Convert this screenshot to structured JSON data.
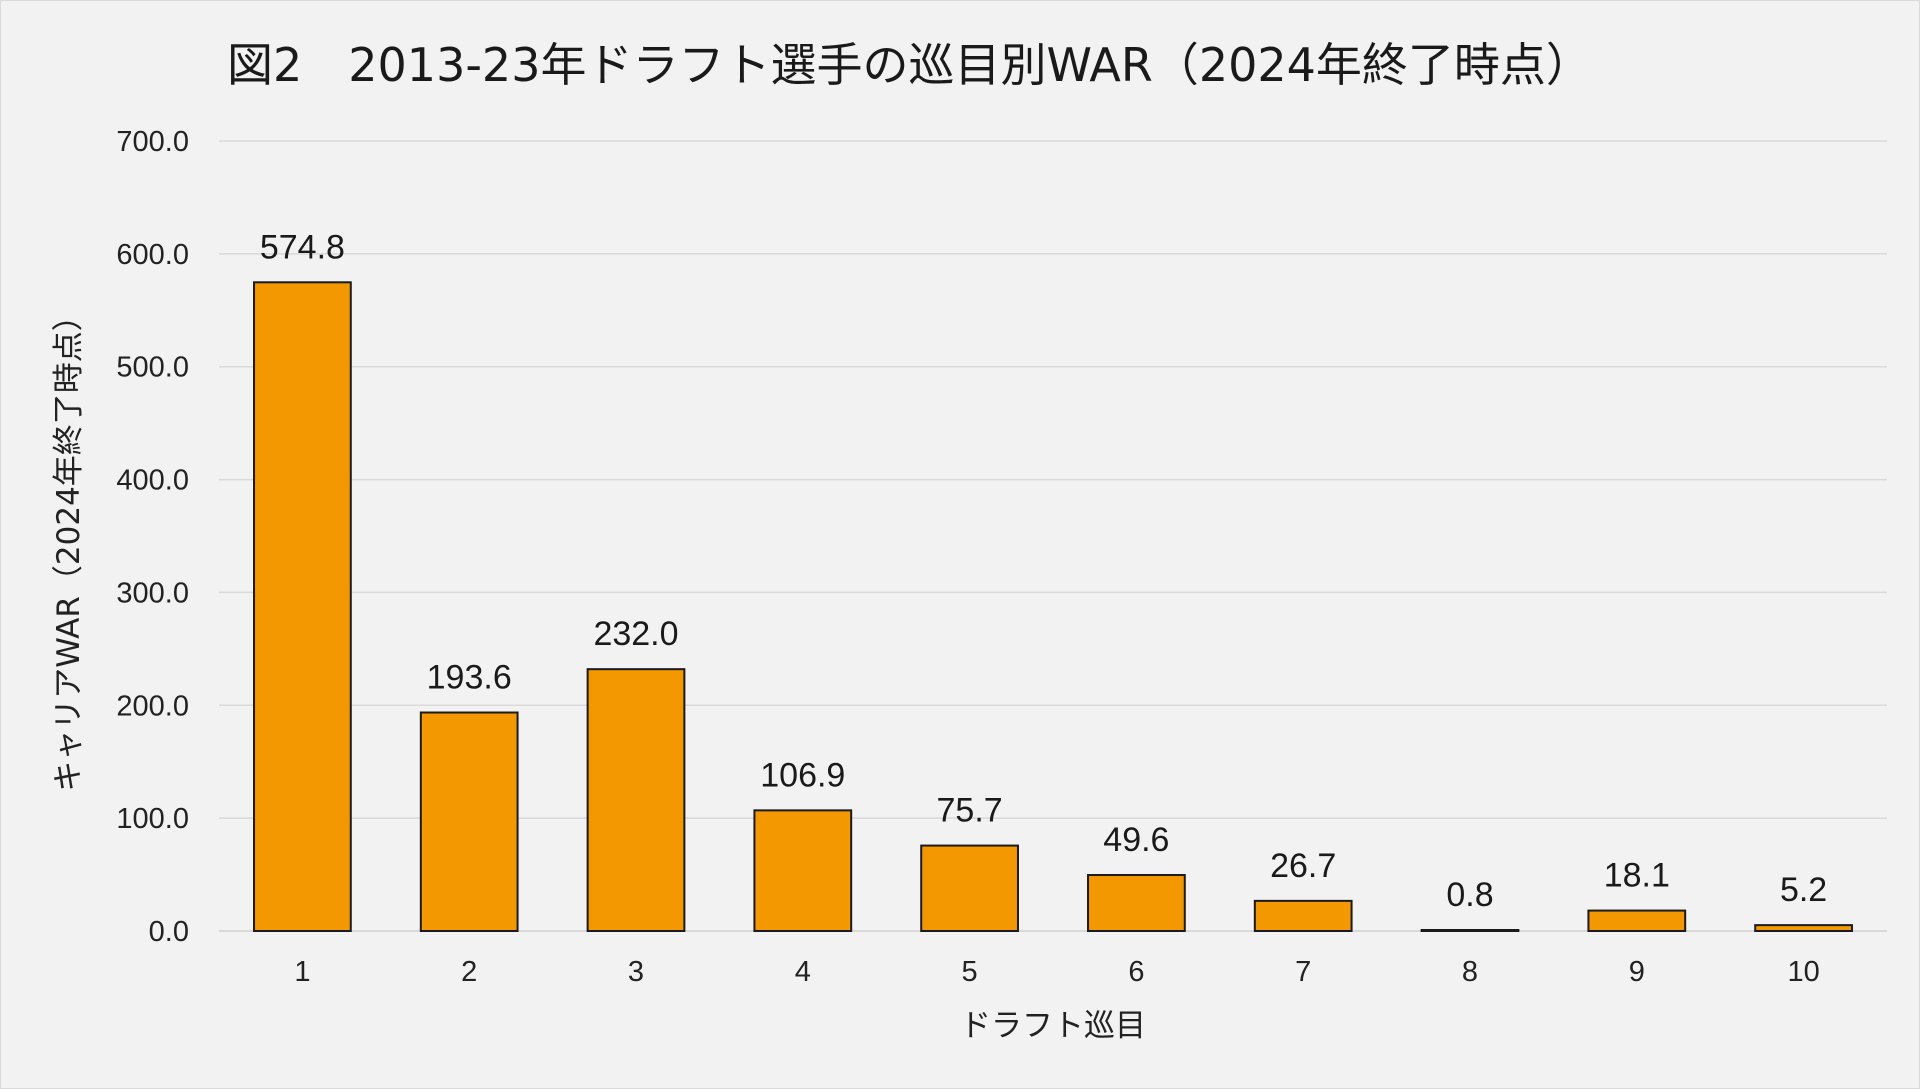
{
  "chart_data": {
    "type": "bar",
    "title": "図2　2013-23年ドラフト選手の巡目別WAR（2024年終了時点）",
    "xlabel": "ドラフト巡目",
    "ylabel": "キャリアWAR（2024年終了時点）",
    "categories": [
      "1",
      "2",
      "3",
      "4",
      "5",
      "6",
      "7",
      "8",
      "9",
      "10"
    ],
    "values": [
      574.8,
      193.6,
      232.0,
      106.9,
      75.7,
      49.6,
      26.7,
      0.8,
      18.1,
      5.2
    ],
    "value_labels": [
      "574.8",
      "193.6",
      "232.0",
      "106.9",
      "75.7",
      "49.6",
      "26.7",
      "0.8",
      "18.1",
      "5.2"
    ],
    "ylim": [
      0,
      700
    ],
    "yticks": [
      0,
      100,
      200,
      300,
      400,
      500,
      600,
      700
    ],
    "ytick_labels": [
      "0.0",
      "100.0",
      "200.0",
      "300.0",
      "400.0",
      "500.0",
      "600.0",
      "700.0"
    ],
    "grid": true,
    "legend": "none",
    "colors": {
      "bar_fill": "#f39800",
      "bar_stroke": "#1a1a1a",
      "grid": "#d9d9d9",
      "background": "#f2f2f2"
    }
  }
}
